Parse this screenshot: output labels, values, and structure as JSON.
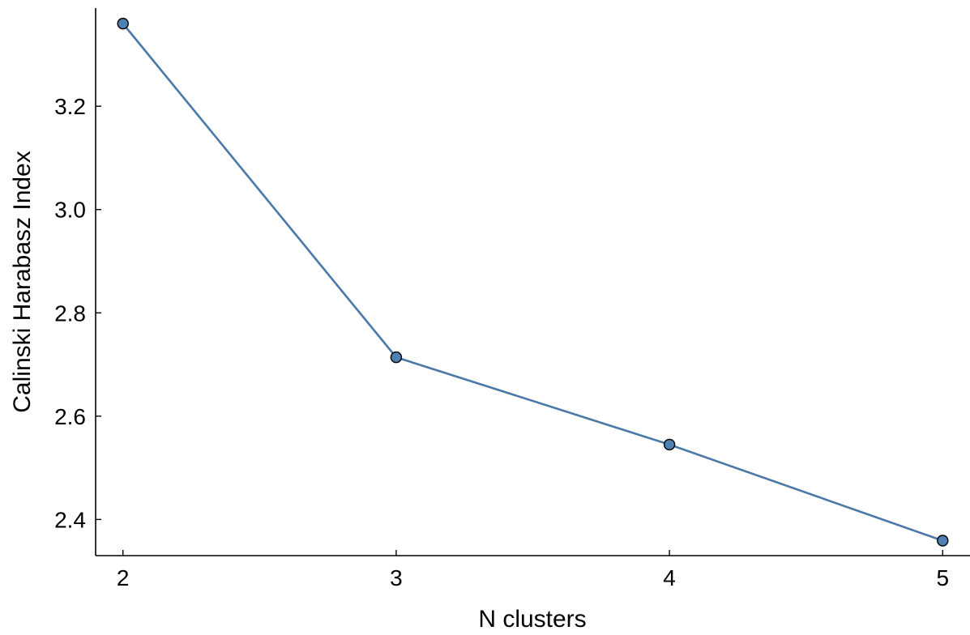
{
  "chart_data": {
    "type": "line",
    "title": "",
    "xlabel": "N clusters",
    "ylabel": "Calinski Harabasz Index",
    "x": [
      2,
      3,
      4,
      5
    ],
    "series": [
      {
        "values": [
          3.36,
          2.714,
          2.545,
          2.359
        ]
      }
    ],
    "xlim": [
      1.9,
      5.1
    ],
    "ylim": [
      2.33,
      3.39
    ],
    "x_ticks": [
      "2",
      "3",
      "4",
      "5"
    ],
    "y_ticks": [
      "2.4",
      "2.6",
      "2.8",
      "3.0",
      "3.2"
    ],
    "grid": false,
    "legend": "none",
    "colors": {
      "line": "#4a79a8",
      "marker_fill": "#4f7fb3",
      "axis": "#000000"
    }
  }
}
